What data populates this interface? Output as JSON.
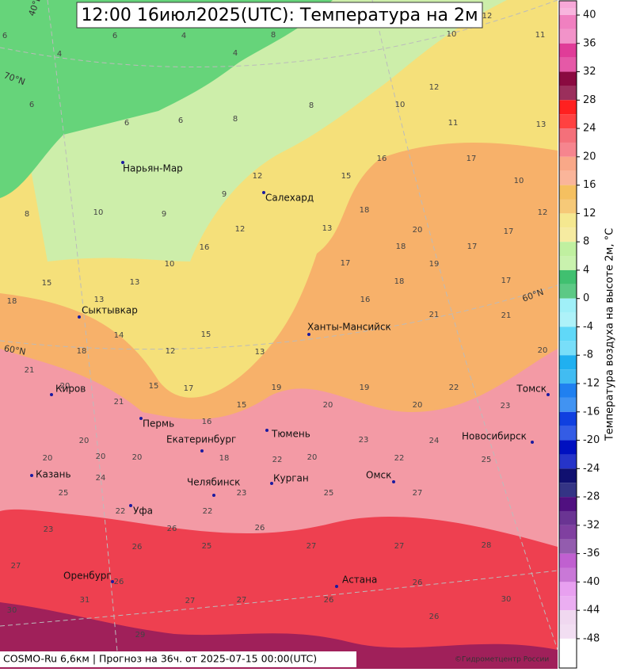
{
  "title": "12:00 16июл2025(UTC): Температура на 2м",
  "footer": {
    "model": "COSMO-Ru 6,6км | Прогноз на  36ч. от 2025-07-15 00:00(UTC)",
    "copyright": "©Гидрометцентр России"
  },
  "graticule": [
    "40°E",
    "70°N",
    "60°N",
    "60°N"
  ],
  "cities": [
    "Нарьян-Мар",
    "Салехард",
    "Сыктывкар",
    "Ханты-Мансийск",
    "Киров",
    "Пермь",
    "Томск",
    "Екатеринбург",
    "Тюмень",
    "Новосибирск",
    "Казань",
    "Челябинск",
    "Курган",
    "Омск",
    "Уфа",
    "Астана",
    "Оренбург"
  ],
  "temperatures": [
    6,
    4,
    6,
    4,
    4,
    8,
    10,
    11,
    12,
    6,
    6,
    6,
    8,
    8,
    10,
    12,
    11,
    13,
    8,
    10,
    9,
    9,
    12,
    15,
    16,
    17,
    10,
    18,
    15,
    13,
    13,
    10,
    16,
    12,
    13,
    18,
    20,
    17,
    12,
    18,
    14,
    12,
    15,
    13,
    17,
    18,
    19,
    17,
    17,
    16,
    18,
    21,
    21,
    20,
    21,
    20,
    20,
    21,
    15,
    17,
    16,
    15,
    19,
    20,
    19,
    20,
    22,
    23,
    20,
    20,
    20,
    18,
    22,
    20,
    23,
    22,
    24,
    25,
    25,
    24,
    22,
    22,
    23,
    25,
    27,
    23,
    26,
    26,
    25,
    26,
    27,
    27,
    28,
    27,
    26,
    27,
    27,
    26,
    26,
    26,
    30,
    30,
    31,
    29
  ],
  "colorbar": {
    "label": "Температура воздуха на высоте 2м, °C",
    "ticks": [
      40,
      36,
      32,
      28,
      24,
      20,
      16,
      12,
      8,
      4,
      0,
      -4,
      -8,
      -12,
      -16,
      -20,
      -24,
      -28,
      -32,
      -36,
      -40,
      -44,
      -48
    ],
    "colors": [
      "#f7a8d8",
      "#f080c0",
      "#e03c98",
      "#8a0a40",
      "#ff2020",
      "#f4707a",
      "#f9a888",
      "#f5c060",
      "#f5e890",
      "#c0f0a0",
      "#40c070",
      "#a0f0f8",
      "#60d8f8",
      "#20b0f0",
      "#2080f0",
      "#1040e0",
      "#0010c0",
      "#101070",
      "#501080",
      "#8040a0",
      "#c060d0",
      "#e8a0f0",
      "#f0d8f0",
      "#ffffff"
    ]
  }
}
